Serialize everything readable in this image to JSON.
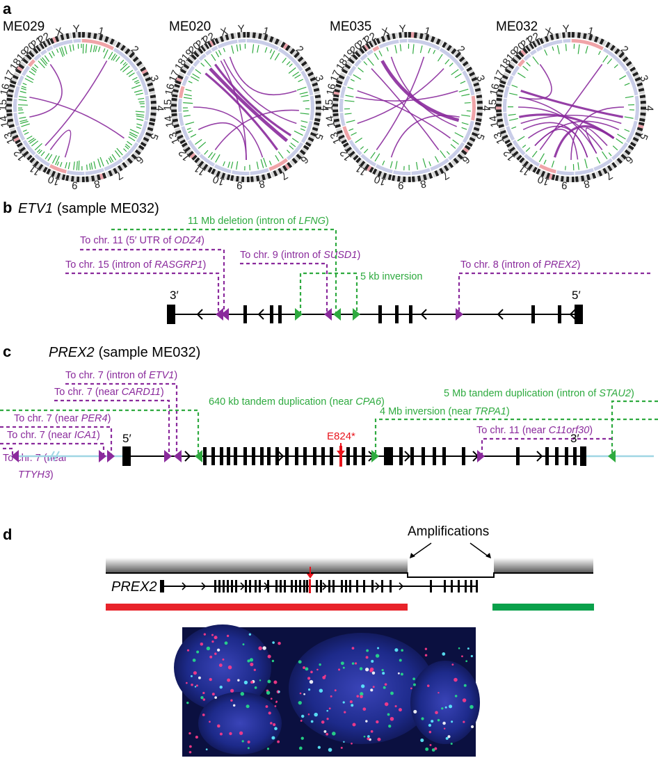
{
  "panels": {
    "a": {
      "letter": "a",
      "samples": [
        "ME029",
        "ME020",
        "ME035",
        "ME032"
      ],
      "chromosomes": [
        "1",
        "2",
        "3",
        "4",
        "5",
        "6",
        "7",
        "8",
        "9",
        "10",
        "11",
        "12",
        "13",
        "14",
        "15",
        "16",
        "17",
        "18",
        "19",
        "20",
        "21",
        "22",
        "X",
        "Y"
      ]
    },
    "b": {
      "letter": "b",
      "gene": "ETV1",
      "sample": "(sample ME032)",
      "end_left": "3′",
      "end_right": "5′",
      "annotations": [
        {
          "prefix": "11 Mb deletion (intron of ",
          "gene": "LFNG",
          "suffix": ")",
          "color": "green"
        },
        {
          "prefix": "To chr. 11 (5′ UTR of ",
          "gene": "ODZ4",
          "suffix": ")",
          "color": "purple"
        },
        {
          "prefix": "To chr. 9 (intron of ",
          "gene": "SUSD1",
          "suffix": ")",
          "color": "purple"
        },
        {
          "prefix": "To chr. 15 (intron of ",
          "gene": "RASGRP1",
          "suffix": ")",
          "color": "purple"
        },
        {
          "prefix": "5 kb inversion",
          "gene": "",
          "suffix": "",
          "color": "green"
        },
        {
          "prefix": "To chr. 8 (intron of ",
          "gene": "PREX2",
          "suffix": ")",
          "color": "purple"
        }
      ]
    },
    "c": {
      "letter": "c",
      "gene": "PREX2",
      "sample": "(sample ME032)",
      "end_left": "5′",
      "end_right": "3′",
      "mutation": "E824*",
      "annotations": [
        {
          "prefix": "To chr. 7 (intron of ",
          "gene": "ETV1",
          "suffix": ")",
          "color": "purple"
        },
        {
          "prefix": "To chr. 7 (near ",
          "gene": "CARD11",
          "suffix": ")",
          "color": "purple"
        },
        {
          "prefix": "640 kb tandem duplication (near ",
          "gene": "CPA6",
          "suffix": ")",
          "color": "green"
        },
        {
          "prefix": "5 Mb tandem duplication (intron of ",
          "gene": "STAU2",
          "suffix": ")",
          "color": "green"
        },
        {
          "prefix": "4 Mb inversion (near ",
          "gene": "TRPA1",
          "suffix": ")",
          "color": "green"
        },
        {
          "prefix": "To chr. 7 (near ",
          "gene": "PER4",
          "suffix": ")",
          "color": "purple"
        },
        {
          "prefix": "To chr. 11 (near ",
          "gene": "C11orf30",
          "suffix": ")",
          "color": "purple"
        },
        {
          "prefix": "To chr. 7 (near ",
          "gene": "ICA1",
          "suffix": ")",
          "color": "purple"
        },
        {
          "prefix": "To chr. 7 (near",
          "gene": "",
          "suffix": "",
          "color": "purple"
        },
        {
          "prefix": "",
          "gene": "TTYH3",
          "suffix": ")",
          "color": "purple"
        }
      ]
    },
    "d": {
      "letter": "d",
      "gene": "PREX2",
      "amplifications": "Amplifications"
    }
  },
  "colors": {
    "purple": "#8a2a9c",
    "green": "#2eaa3f",
    "red": "#e8141c",
    "light_blue": "#9fd6e4",
    "probe_red": "#e8232a",
    "probe_green": "#0aa14b"
  }
}
